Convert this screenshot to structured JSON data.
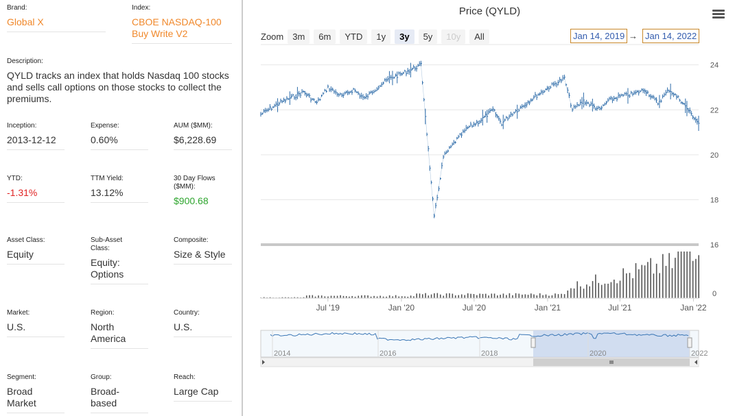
{
  "left": {
    "brand": {
      "label": "Brand:",
      "value": "Global X"
    },
    "index": {
      "label": "Index:",
      "value1": "CBOE NASDAQ-100",
      "value2": "Buy Write V2"
    },
    "description": {
      "label": "Description:",
      "line1": "QYLD tracks an index that holds Nasdaq 100 stocks",
      "line2": "and sells call options on those stocks to collect the",
      "line3": "premiums."
    },
    "inception": {
      "label": "Inception:",
      "value": "2013-12-12"
    },
    "expense": {
      "label": "Expense:",
      "value": "0.60%"
    },
    "aum": {
      "label": "AUM ($MM):",
      "value": "$6,228.69"
    },
    "ytd": {
      "label": "YTD:",
      "value": "-1.31%"
    },
    "ttm": {
      "label": "TTM Yield:",
      "value": "13.12%"
    },
    "flows": {
      "label1": "30 Day Flows",
      "label2": "($MM):",
      "value": "$900.68"
    },
    "asset_class": {
      "label": "Asset Class:",
      "value": "Equity"
    },
    "sub_asset": {
      "label1": "Sub-Asset",
      "label2": "Class:",
      "value1": "Equity:",
      "value2": "Options"
    },
    "composite": {
      "label": "Composite:",
      "value": "Size & Style"
    },
    "market": {
      "label": "Market:",
      "value": "U.S."
    },
    "region": {
      "label": "Region:",
      "value1": "North",
      "value2": "America"
    },
    "country": {
      "label": "Country:",
      "value": "U.S."
    },
    "segment": {
      "label": "Segment:",
      "value1": "Broad",
      "value2": "Market"
    },
    "group": {
      "label": "Group:",
      "value1": "Broad-",
      "value2": "based"
    },
    "reach": {
      "label": "Reach:",
      "value": "Large Cap"
    }
  },
  "chart_header": {
    "title": "Price (QYLD)",
    "zoom_label": "Zoom",
    "zoom_buttons": [
      "3m",
      "6m",
      "YTD",
      "1y",
      "3y",
      "5y",
      "10y",
      "All"
    ],
    "active_zoom": "3y",
    "from_date": "Jan 14, 2019",
    "arrow": "→",
    "to_date": "Jan 14, 2022"
  },
  "chart_data": {
    "type": "line",
    "title": "Price (QYLD)",
    "x_dates": [
      "2019-01-14",
      "2019-03-01",
      "2019-05-01",
      "2019-06-03",
      "2019-07-01",
      "2019-08-05",
      "2019-09-03",
      "2019-10-01",
      "2019-11-01",
      "2019-12-02",
      "2020-01-02",
      "2020-02-19",
      "2020-03-23",
      "2020-04-15",
      "2020-05-15",
      "2020-06-15",
      "2020-07-15",
      "2020-08-17",
      "2020-09-08",
      "2020-10-01",
      "2020-11-02",
      "2020-12-01",
      "2021-01-04",
      "2021-02-12",
      "2021-03-04",
      "2021-04-01",
      "2021-05-12",
      "2021-06-01",
      "2021-07-01",
      "2021-08-02",
      "2021-09-01",
      "2021-10-04",
      "2021-11-01",
      "2021-12-01",
      "2022-01-14"
    ],
    "price": [
      21.8,
      22.3,
      22.8,
      22.3,
      23.0,
      22.6,
      22.9,
      22.5,
      23.0,
      23.4,
      23.6,
      24.0,
      17.2,
      19.9,
      20.6,
      21.2,
      21.5,
      22.0,
      21.4,
      21.8,
      22.2,
      22.6,
      23.0,
      23.4,
      22.0,
      22.4,
      22.0,
      22.4,
      22.6,
      22.7,
      22.9,
      22.3,
      22.9,
      22.4,
      21.4
    ],
    "y_ticks": [
      16,
      18,
      20,
      22,
      24
    ],
    "ylim": [
      16,
      24.6
    ],
    "volume_label": "0",
    "x_tick_labels": [
      "Jul '19",
      "Jan '20",
      "Jul '20",
      "Jan '21",
      "Jul '21",
      "Jan '22"
    ],
    "navigator_labels": [
      "2014",
      "2016",
      "2018",
      "2020",
      "2022"
    ]
  }
}
